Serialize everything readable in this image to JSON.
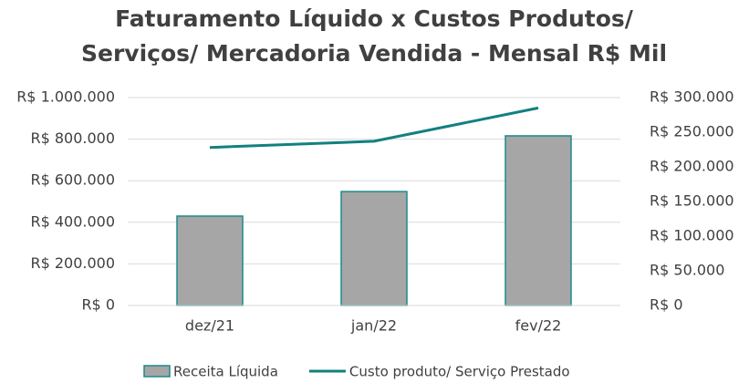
{
  "chart_data": {
    "type": "bar_line",
    "title": "Faturamento Líquido x Custos Produtos/ Serviços/ Mercadoria Vendida - Mensal R$ Mil",
    "categories": [
      "dez/21",
      "jan/22",
      "fev/22"
    ],
    "series": [
      {
        "name": "Receita Líquida",
        "type": "bar",
        "color": "#a6a6a6",
        "edge_color": "#1b8a8a",
        "values": [
          430000,
          548000,
          816000
        ]
      },
      {
        "name": "Custo produto/ Serviço Prestado",
        "type": "line",
        "color": "#138080",
        "axis": "y2",
        "values": [
          228000,
          237000,
          285000
        ]
      }
    ],
    "ylim": [
      0,
      1000000
    ],
    "yticks": [
      {
        "value": 0,
        "label": "R$ 0"
      },
      {
        "value": 200000,
        "label": "R$ 200.000"
      },
      {
        "value": 400000,
        "label": "R$ 400.000"
      },
      {
        "value": 600000,
        "label": "R$ 600.000"
      },
      {
        "value": 800000,
        "label": "R$ 800.000"
      },
      {
        "value": 1000000,
        "label": "R$ 1.000.000"
      }
    ],
    "y2lim": [
      0,
      300000
    ],
    "y2ticks": [
      {
        "value": 0,
        "label": "R$ 0"
      },
      {
        "value": 50000,
        "label": "R$ 50.000"
      },
      {
        "value": 100000,
        "label": "R$ 100.000"
      },
      {
        "value": 150000,
        "label": "R$ 150.000"
      },
      {
        "value": 200000,
        "label": "R$ 200.000"
      },
      {
        "value": 250000,
        "label": "R$ 250.000"
      },
      {
        "value": 300000,
        "label": "R$ 300.000"
      }
    ],
    "grid": true,
    "legend": "bottom"
  }
}
